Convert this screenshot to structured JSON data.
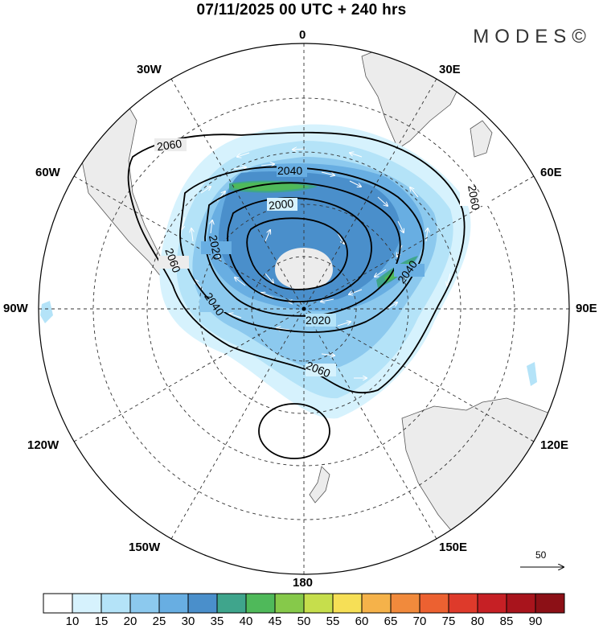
{
  "title": "07/11/2025  00 UTC  + 240 hrs",
  "brand": "MODES©",
  "longitude_labels": {
    "lon_0": "0",
    "lon_30e": "30E",
    "lon_60e": "60E",
    "lon_90e": "90E",
    "lon_120e": "120E",
    "lon_150e": "150E",
    "lon_180": "180",
    "lon_150w": "150W",
    "lon_120w": "120W",
    "lon_90w": "90W",
    "lon_60w": "60W",
    "lon_30w": "30W"
  },
  "contour_labels": [
    "2060",
    "2040",
    "2000",
    "2020",
    "2060",
    "2040",
    "2020",
    "2060",
    "2040",
    "2020",
    "2060"
  ],
  "colorbar": {
    "ticks": [
      "10",
      "15",
      "20",
      "25",
      "30",
      "35",
      "40",
      "45",
      "50",
      "55",
      "60",
      "65",
      "70",
      "75",
      "80",
      "85",
      "90"
    ],
    "colors": [
      "#ffffff",
      "#d6f2fd",
      "#b4e3f8",
      "#8cc9ee",
      "#68aee2",
      "#4a8fcb",
      "#3fa58c",
      "#4fb95a",
      "#86c94a",
      "#c6de4c",
      "#f6df56",
      "#f5b24a",
      "#f18a3c",
      "#ec6131",
      "#de3a2b",
      "#c62025",
      "#a8141c",
      "#8c1016"
    ]
  },
  "wind_reference": "50",
  "colors": {
    "land": "#ececec",
    "coast": "#555555",
    "grid": "#333333",
    "contour": "#000000"
  }
}
